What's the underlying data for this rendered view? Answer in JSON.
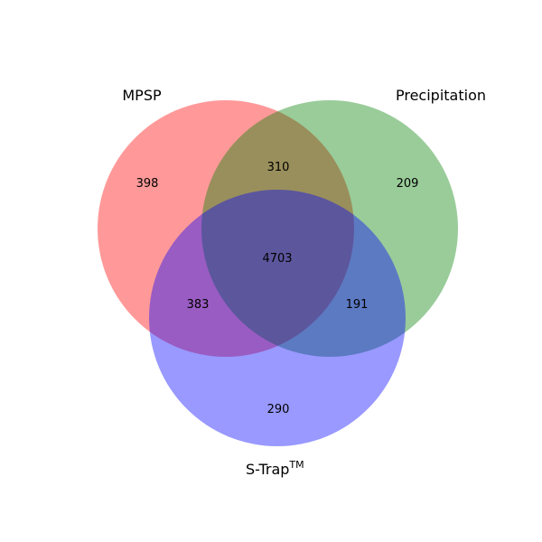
{
  "chart_data": {
    "type": "venn3",
    "sets": [
      {
        "name": "MPSP",
        "color": "#ff0000"
      },
      {
        "name": "Precipitation",
        "color": "#008000"
      },
      {
        "name": "S-Trap",
        "superscript": "TM",
        "color": "#0000ff"
      }
    ],
    "regions": {
      "MPSP_only": "398",
      "Precipitation_only": "209",
      "STrap_only": "290",
      "MPSP_Precipitation": "310",
      "MPSP_STrap": "383",
      "Precipitation_STrap": "191",
      "all": "4703"
    },
    "alpha": 0.4
  }
}
